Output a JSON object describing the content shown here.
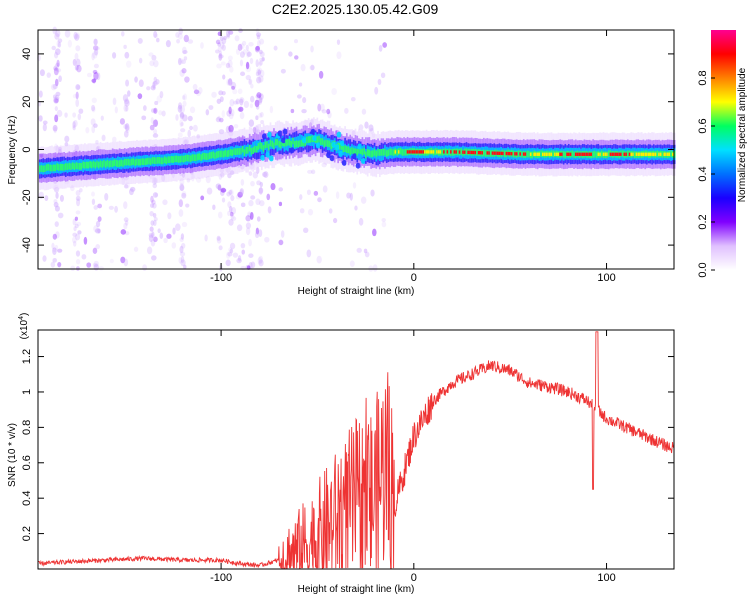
{
  "figure_title": "C2E2.2025.130.05.42.G09",
  "chart_data": [
    {
      "type": "heatmap",
      "xlabel": "Height of straight line (km)",
      "ylabel": "Frequency (Hz)",
      "xlim": [
        -195,
        135
      ],
      "ylim": [
        -50,
        50
      ],
      "xticks": [
        -100,
        0,
        100
      ],
      "yticks": [
        -40,
        -20,
        0,
        20,
        40
      ],
      "colorbar": {
        "label": "Normalized spectral amplitude",
        "range": [
          0,
          1
        ],
        "ticks": [
          "0.0",
          "0.2",
          "0.4",
          "0.6",
          "0.8"
        ],
        "colormap": [
          "#ffffff",
          "#e0c0ff",
          "#8000ff",
          "#1a00ff",
          "#0070ff",
          "#00e0ff",
          "#00ff60",
          "#ffff00",
          "#ff8000",
          "#ff0000",
          "#ff0090"
        ]
      },
      "ridge": {
        "x": [
          -195,
          -160,
          -120,
          -100,
          -85,
          -75,
          -60,
          -50,
          -40,
          -30,
          -20,
          -10,
          0,
          20,
          60,
          90,
          110,
          135
        ],
        "y": [
          -8,
          -6,
          -4,
          -2,
          0,
          2,
          3,
          4,
          1,
          -1,
          -2,
          -1,
          -1,
          -1,
          -2,
          -2,
          -2,
          -2
        ]
      }
    },
    {
      "type": "line",
      "xlabel": "Height of straight line (km)",
      "ylabel": "SNR (10 * v/v)",
      "y_multiplier": "(x10",
      "y_exponent": "4",
      "xlim": [
        -195,
        135
      ],
      "ylim": [
        0,
        1.35
      ],
      "xticks": [
        -100,
        0,
        100
      ],
      "yticks": [
        0.2,
        0.4,
        0.6,
        0.8,
        1.0,
        1.2
      ],
      "color": "#ee3333",
      "series": [
        {
          "x": [
            -195,
            -180,
            -160,
            -140,
            -120,
            -100,
            -90,
            -80,
            -70,
            -60,
            -50,
            -40,
            -30,
            -20,
            -15,
            -10,
            0,
            10,
            20,
            30,
            40,
            50,
            60,
            70,
            80,
            90,
            95,
            100,
            110,
            120,
            130,
            135
          ],
          "y": [
            0.03,
            0.04,
            0.05,
            0.06,
            0.05,
            0.05,
            0.03,
            0.02,
            0.05,
            0.1,
            0.18,
            0.28,
            0.38,
            0.4,
            0.6,
            0.35,
            0.75,
            0.95,
            1.05,
            1.1,
            1.15,
            1.12,
            1.05,
            1.03,
            1.0,
            0.95,
            0.9,
            0.85,
            0.8,
            0.75,
            0.7,
            0.68
          ]
        }
      ]
    }
  ]
}
